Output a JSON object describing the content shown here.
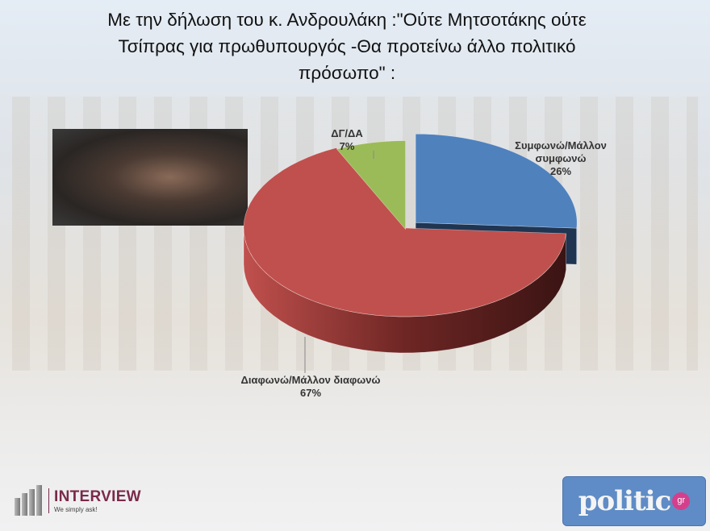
{
  "chart_data": {
    "type": "pie",
    "title": "Με την δήλωση του κ. Ανδρουλάκη :\"Ούτε Μητσοτάκης ούτε Τσίπρας για πρωθυπουργός -Θα προτείνω άλλο πολιτικό πρόσωπο\" :",
    "title_lines": [
      "Με την δήλωση του κ. Ανδρουλάκη :\"Ούτε Μητσοτάκης ούτε",
      "Τσίπρας για πρωθυπουργός -Θα προτείνω άλλο πολιτικό",
      "πρόσωπο\" :"
    ],
    "style": "3d",
    "slices": [
      {
        "label_lines": [
          "Συμφωνώ/Μάλλον",
          "συμφωνώ"
        ],
        "value": 26,
        "value_label": "26%",
        "color": "#4f81bd",
        "side_color": "#1f3552",
        "exploded": true
      },
      {
        "label_lines": [
          "Διαφωνώ/Μάλλον διαφωνώ"
        ],
        "value": 67,
        "value_label": "67%",
        "color": "#c0504d",
        "side_color": "#6e2624",
        "exploded": false
      },
      {
        "label_lines": [
          "ΔΓ/ΔΑ"
        ],
        "value": 7,
        "value_label": "7%",
        "color": "#9bbb59",
        "side_color": "#4f6a2a",
        "exploded": false
      }
    ]
  },
  "logos": {
    "interview": {
      "name": "INTERVIEW",
      "tagline": "We simply ask!",
      "color": "#7a2a4a"
    },
    "politic": {
      "name": "politic",
      "suffix": "gr"
    }
  }
}
